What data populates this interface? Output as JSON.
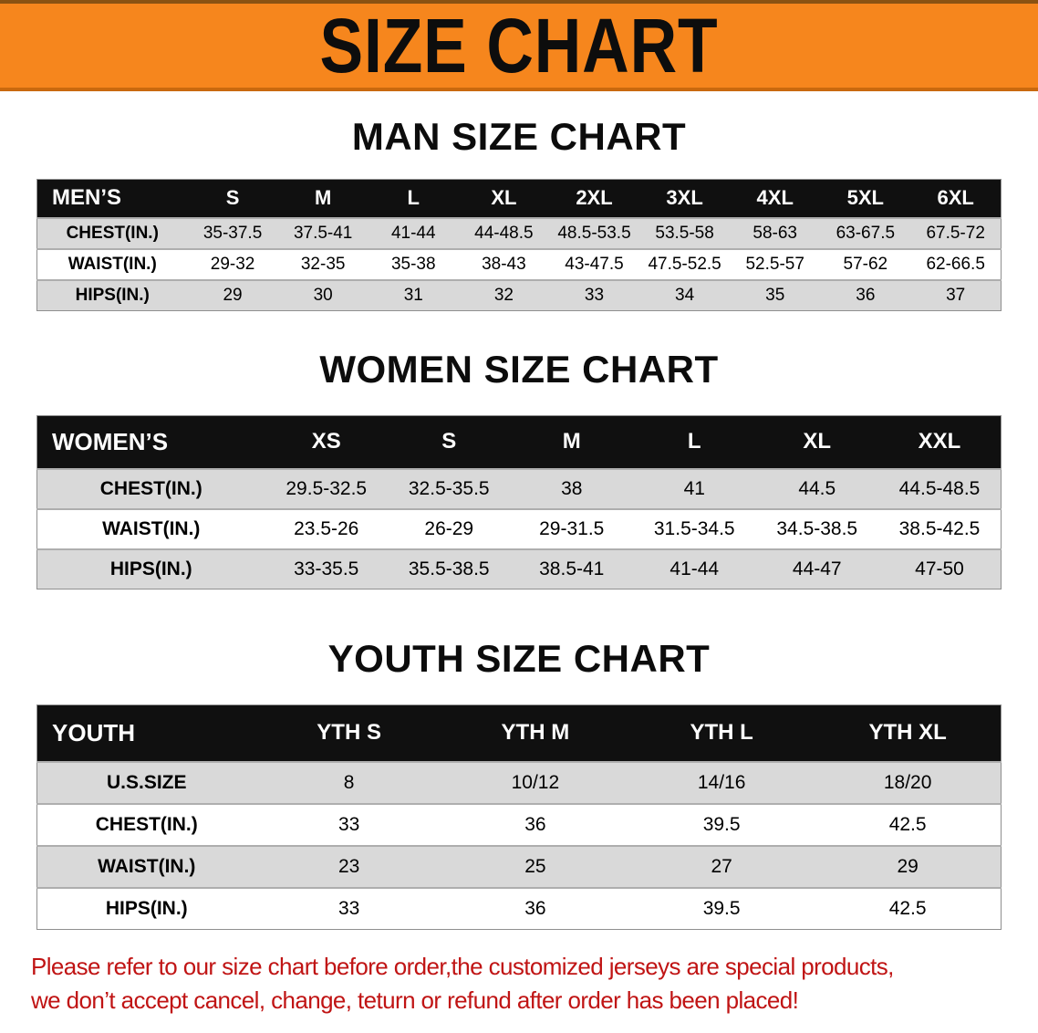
{
  "banner": {
    "title": "SIZE CHART"
  },
  "sections": {
    "men": {
      "heading": "MAN SIZE CHART",
      "table": {
        "header": [
          "MEN’S",
          "S",
          "M",
          "L",
          "XL",
          "2XL",
          "3XL",
          "4XL",
          "5XL",
          "6XL"
        ],
        "rows": [
          {
            "label": "CHEST(IN.)",
            "values": [
              "35-37.5",
              "37.5-41",
              "41-44",
              "44-48.5",
              "48.5-53.5",
              "53.5-58",
              "58-63",
              "63-67.5",
              "67.5-72"
            ]
          },
          {
            "label": "WAIST(IN.)",
            "values": [
              "29-32",
              "32-35",
              "35-38",
              "38-43",
              "43-47.5",
              "47.5-52.5",
              "52.5-57",
              "57-62",
              "62-66.5"
            ]
          },
          {
            "label": "HIPS(IN.)",
            "values": [
              "29",
              "30",
              "31",
              "32",
              "33",
              "34",
              "35",
              "36",
              "37"
            ]
          }
        ]
      }
    },
    "women": {
      "heading": "WOMEN SIZE CHART",
      "table": {
        "header": [
          "WOMEN’S",
          "XS",
          "S",
          "M",
          "L",
          "XL",
          "XXL"
        ],
        "rows": [
          {
            "label": "CHEST(IN.)",
            "values": [
              "29.5-32.5",
              "32.5-35.5",
              "38",
              "41",
              "44.5",
              "44.5-48.5"
            ]
          },
          {
            "label": "WAIST(IN.)",
            "values": [
              "23.5-26",
              "26-29",
              "29-31.5",
              "31.5-34.5",
              "34.5-38.5",
              "38.5-42.5"
            ]
          },
          {
            "label": "HIPS(IN.)",
            "values": [
              "33-35.5",
              "35.5-38.5",
              "38.5-41",
              "41-44",
              "44-47",
              "47-50"
            ]
          }
        ]
      }
    },
    "youth": {
      "heading": "YOUTH SIZE CHART",
      "table": {
        "header": [
          "YOUTH",
          "YTH S",
          "YTH M",
          "YTH L",
          "YTH XL"
        ],
        "rows": [
          {
            "label": "U.S.SIZE",
            "values": [
              "8",
              "10/12",
              "14/16",
              "18/20"
            ]
          },
          {
            "label": "CHEST(IN.)",
            "values": [
              "33",
              "36",
              "39.5",
              "42.5"
            ]
          },
          {
            "label": "WAIST(IN.)",
            "values": [
              "23",
              "25",
              "27",
              "29"
            ]
          },
          {
            "label": "HIPS(IN.)",
            "values": [
              "33",
              "36",
              "39.5",
              "42.5"
            ]
          }
        ]
      }
    }
  },
  "disclaimer": {
    "line1": "Please refer to our size chart before order,the customized jerseys are special products,",
    "line2": "we don’t accept cancel, change, teturn or refund after order has been placed!"
  },
  "colors": {
    "banner_bg": "#f6861d",
    "table_header_bg": "#101010",
    "row_alt_gray": "#d9d9d9",
    "disclaimer_text": "#c01414"
  }
}
